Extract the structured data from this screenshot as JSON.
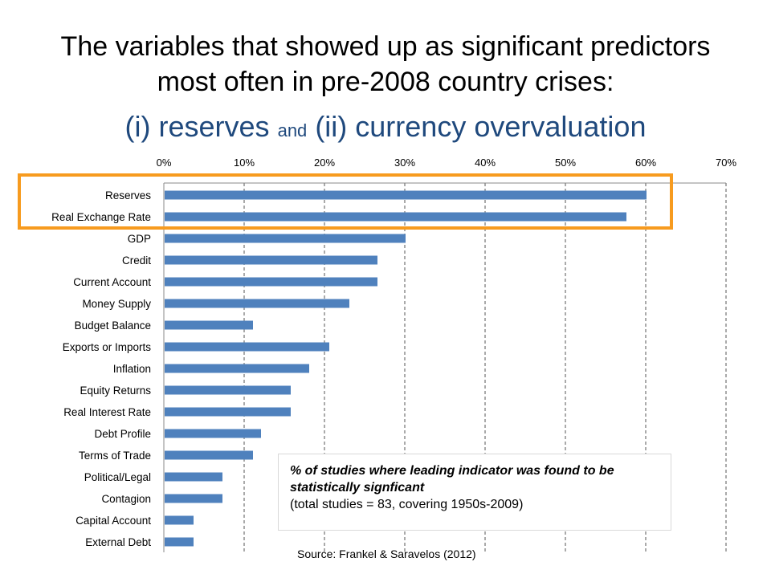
{
  "title": {
    "line1": "The variables that showed up as significant predictors",
    "line2": "most often in pre-2008 country crises:",
    "line3_part1": "(i) reserves",
    "line3_part2": "and",
    "line3_part3": "(ii) currency overvaluation"
  },
  "colors": {
    "bar": "#4f81bd",
    "highlight": "#f79b1f",
    "title_accent": "#1f497d"
  },
  "chart_data": {
    "type": "bar",
    "orientation": "horizontal",
    "categories": [
      "Reserves",
      "Real Exchange Rate",
      "GDP",
      "Credit",
      "Current Account",
      "Money Supply",
      "Budget Balance",
      "Exports or Imports",
      "Inflation",
      "Equity Returns",
      "Real Interest Rate",
      "Debt Profile",
      "Terms of Trade",
      "Political/Legal",
      "Contagion",
      "Capital Account",
      "External Debt"
    ],
    "values": [
      60,
      57.5,
      30,
      26.5,
      26.5,
      23,
      11,
      20.5,
      18,
      15.7,
      15.7,
      12,
      11,
      7.2,
      7.2,
      3.6,
      3.6
    ],
    "xlim": [
      0,
      70
    ],
    "xticks": [
      "0%",
      "10%",
      "20%",
      "30%",
      "40%",
      "50%",
      "60%",
      "70%"
    ],
    "x_axis_position": "top",
    "grid": "vertical-dashed",
    "highlighted_categories": [
      "Reserves",
      "Real Exchange Rate"
    ]
  },
  "note": {
    "bold": "% of studies where leading indicator was found to be statistically signficant",
    "normal": "(total studies = 83, covering 1950s-2009)"
  },
  "source": "Source: Frankel & Saravelos (2012)"
}
